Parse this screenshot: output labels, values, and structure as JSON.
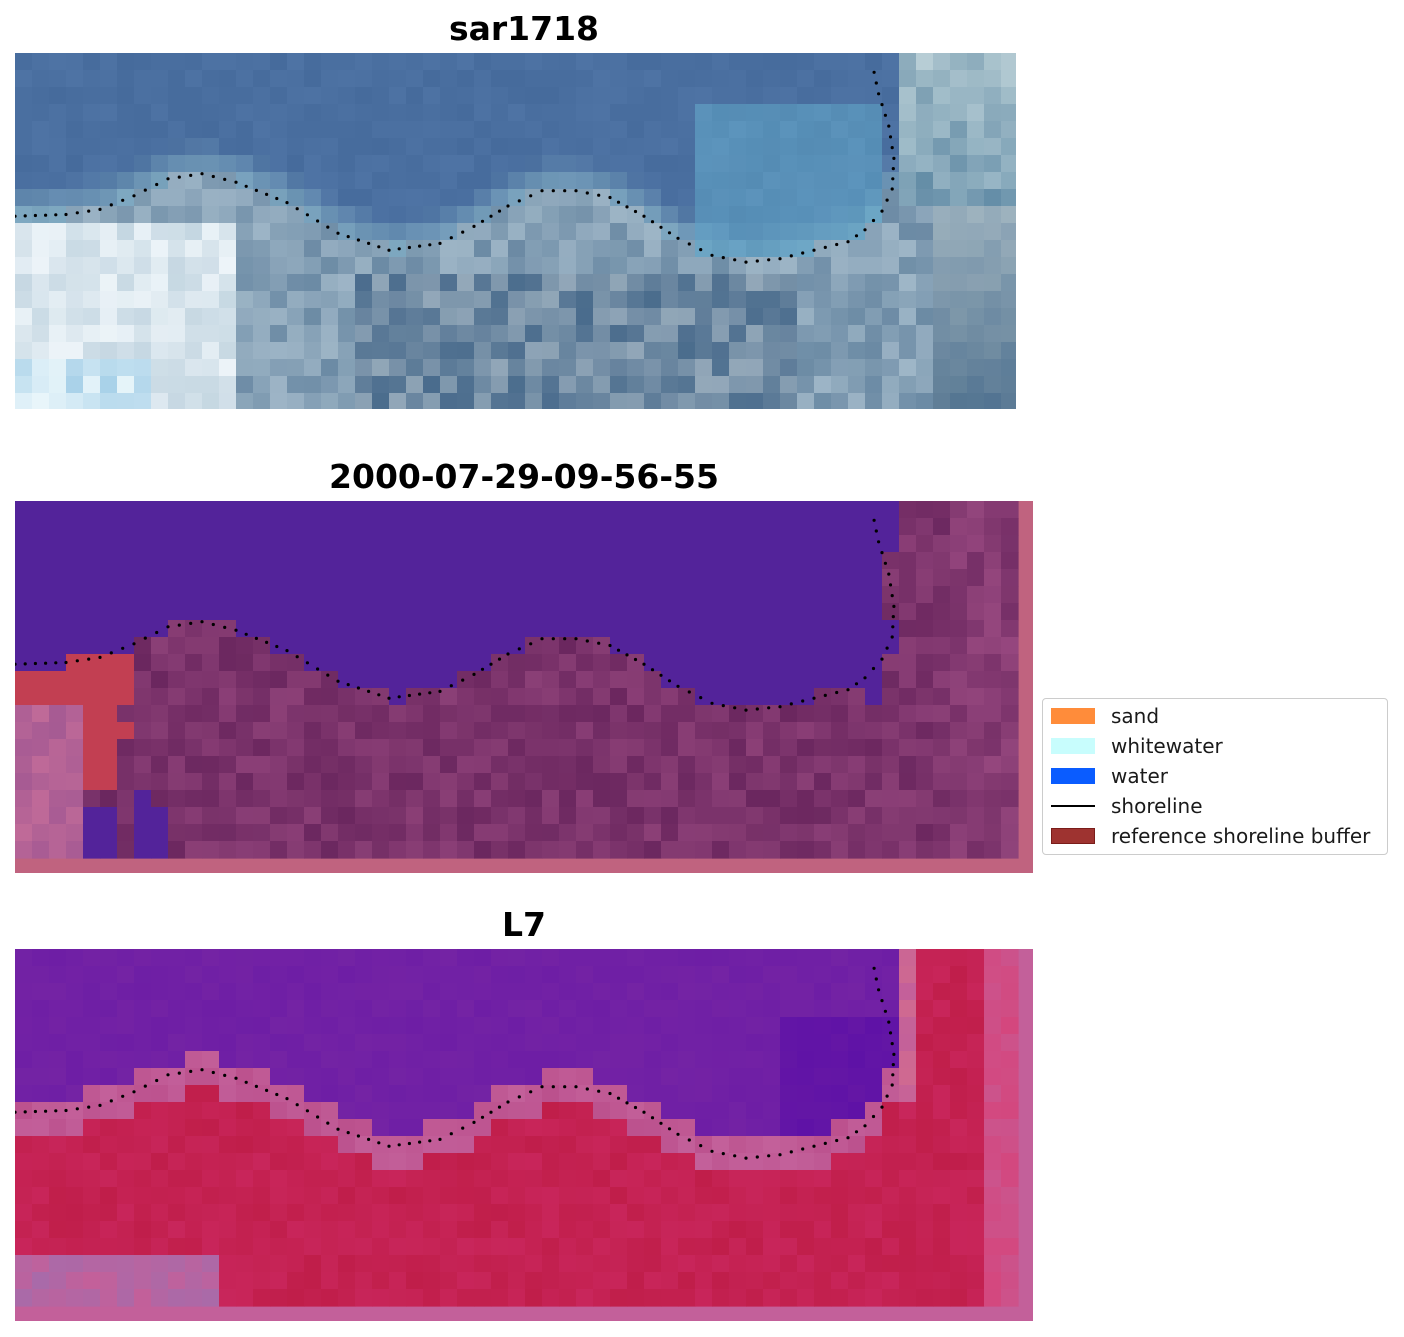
{
  "figure": {
    "panel_titles": [
      "sar1718",
      "2000-07-29-09-56-55",
      "L7"
    ]
  },
  "legend": {
    "items": [
      {
        "label": "sand",
        "color": "#ff8c3a",
        "kind": "patch"
      },
      {
        "label": "whitewater",
        "color": "#c8fdfd",
        "kind": "patch"
      },
      {
        "label": "water",
        "color": "#0a5cff",
        "kind": "patch"
      },
      {
        "label": "shoreline",
        "color": "#000000",
        "kind": "line"
      },
      {
        "label": "reference shoreline buffer",
        "color": "#9e3330",
        "kind": "patch"
      }
    ]
  },
  "chart_data": [
    {
      "type": "heatmap",
      "title": "sar1718",
      "image": "RGB satellite image",
      "shoreline_marker": "black dots",
      "colors": [
        "#4a6fa0",
        "#7ea8c0",
        "#c8dde6",
        "#ffffff",
        "#3f6a90",
        "#f1d6cf"
      ]
    },
    {
      "type": "heatmap",
      "title": "2000-07-29-09-56-55",
      "image": "classified image overlay",
      "shoreline_marker": "black dots",
      "colors": [
        "#53239a",
        "#8b3f80",
        "#c0637f",
        "#c23f52",
        "#6b275f"
      ]
    },
    {
      "type": "heatmap",
      "title": "L7",
      "image": "index image overlay",
      "shoreline_marker": "black dots",
      "colors": [
        "#7a28a4",
        "#5b0fa6",
        "#c01e4a",
        "#c3609a",
        "#a96aa9"
      ]
    }
  ]
}
